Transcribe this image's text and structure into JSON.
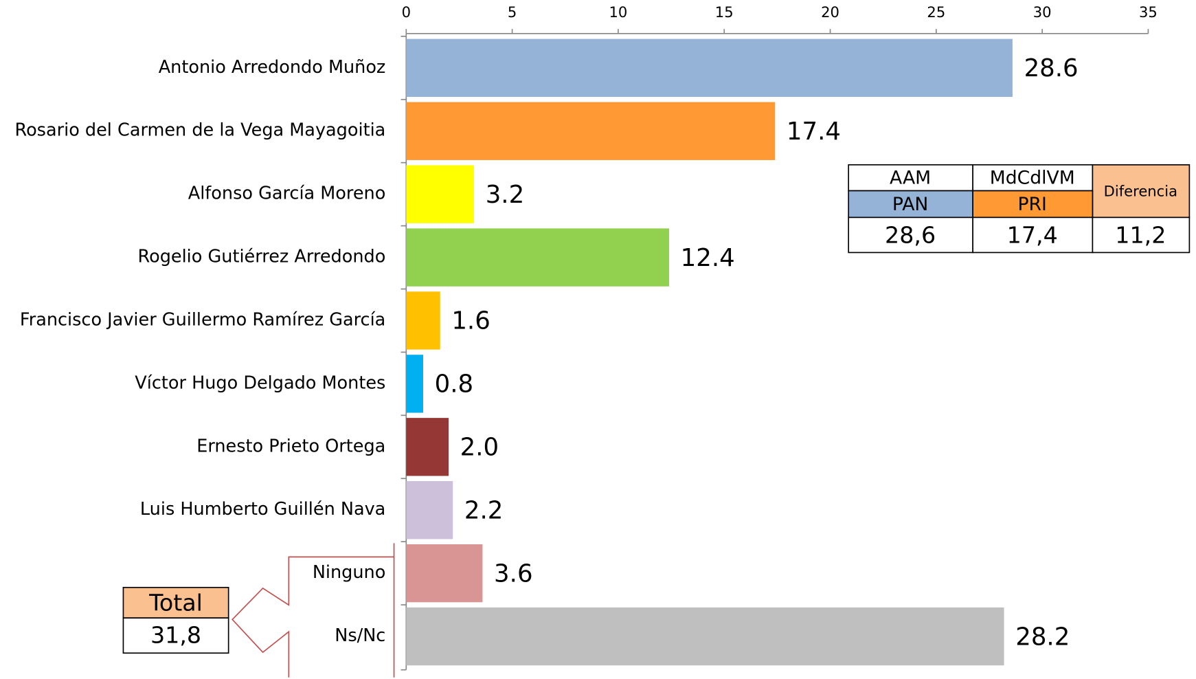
{
  "chart_data": {
    "type": "barh",
    "categories": [
      "Antonio Arredondo Muñoz",
      "Rosario del Carmen de la Vega Mayagoitia",
      "Alfonso García Moreno",
      "Rogelio Gutiérrez Arredondo",
      "Francisco Javier Guillermo Ramírez García",
      "Víctor Hugo Delgado Montes",
      "Ernesto Prieto Ortega",
      "Luis Humberto Guillén Nava",
      "Ninguno",
      "Ns/Nc"
    ],
    "values": [
      28.6,
      17.4,
      3.2,
      12.4,
      1.6,
      0.8,
      2.0,
      2.2,
      3.6,
      28.2
    ],
    "value_labels": [
      "28.6",
      "17.4",
      "3.2",
      "12.4",
      "1.6",
      "0.8",
      "2.0",
      "2.2",
      "3.6",
      "28.2"
    ],
    "colors": [
      "#95b3d7",
      "#ff9933",
      "#ffff00",
      "#92d050",
      "#ffc000",
      "#00b0f0",
      "#953735",
      "#ccc0da",
      "#d99594",
      "#bfbfbf"
    ],
    "xlim": [
      0,
      35
    ],
    "xticks": [
      0,
      5,
      10,
      15,
      20,
      25,
      30,
      35
    ]
  },
  "table": {
    "header": [
      "AAM",
      "MdCdlVM",
      "Diferencia"
    ],
    "parties": [
      "PAN",
      "PRI"
    ],
    "values": [
      "28,6",
      "17,4",
      "11,2"
    ]
  },
  "total": {
    "label": "Total",
    "value": "31,8"
  }
}
